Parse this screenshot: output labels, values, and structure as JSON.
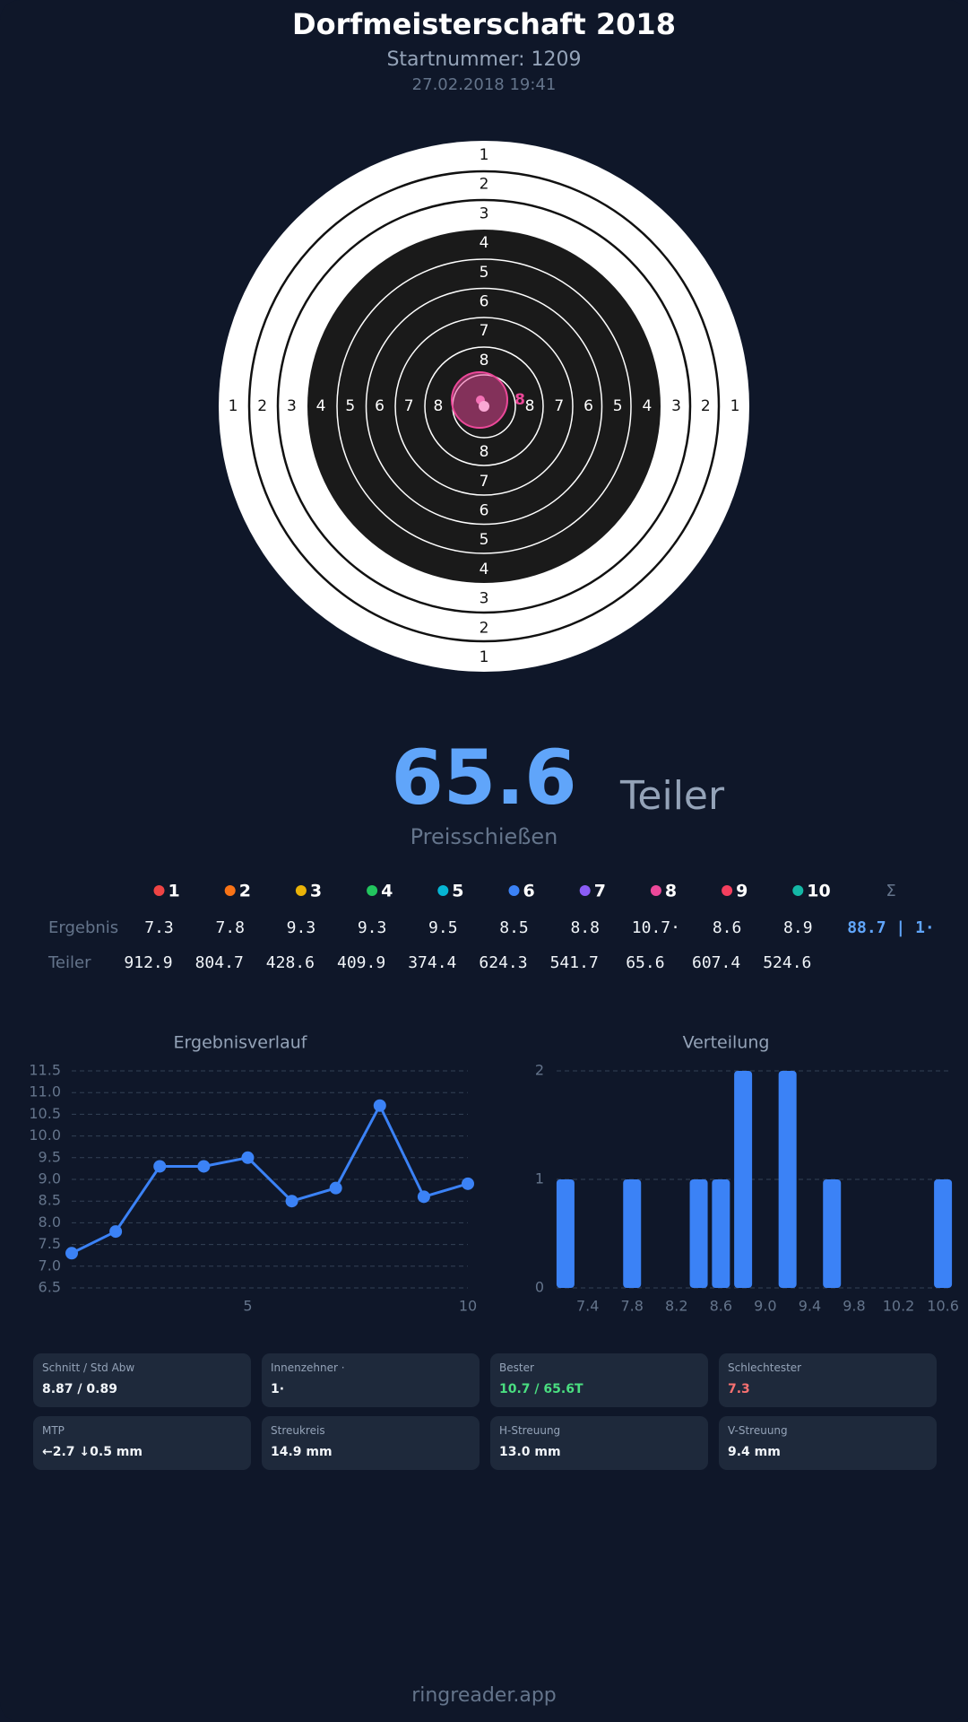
{
  "header": {
    "title": "Dorfmeisterschaft 2018",
    "subtitle": "Startnummer: 1209",
    "datetime": "27.02.2018 19:41"
  },
  "target": {
    "ring_labels": [
      "1",
      "2",
      "3",
      "4",
      "5",
      "6",
      "7",
      "8"
    ]
  },
  "result": {
    "value": "65.6",
    "unit": "Teiler",
    "mode": "Preisschießen"
  },
  "shots": {
    "labels": [
      "1",
      "2",
      "3",
      "4",
      "5",
      "6",
      "7",
      "8",
      "9",
      "10"
    ],
    "colors": [
      "#ef4444",
      "#f97316",
      "#eab308",
      "#22c55e",
      "#06b6d4",
      "#3b82f6",
      "#8b5cf6",
      "#ec4899",
      "#f43f5e",
      "#14b8a6"
    ],
    "sum_label": "Σ",
    "rows": [
      {
        "label": "Ergebnis",
        "values": [
          "7.3",
          "7.8",
          "9.3",
          "9.3",
          "9.5",
          "8.5",
          "8.8",
          "10.7·",
          "8.6",
          "8.9"
        ],
        "total": "88.7 | 1·"
      },
      {
        "label": "Teiler",
        "values": [
          "912.9",
          "804.7",
          "428.6",
          "409.9",
          "374.4",
          "624.3",
          "541.7",
          "65.6",
          "607.4",
          "524.6"
        ]
      }
    ]
  },
  "chart_data": [
    {
      "type": "line",
      "title": "Ergebnisverlauf",
      "x": [
        1,
        2,
        3,
        4,
        5,
        6,
        7,
        8,
        9,
        10
      ],
      "series": [
        {
          "values": [
            7.3,
            7.8,
            9.3,
            9.3,
            9.5,
            8.5,
            8.8,
            10.7,
            8.6,
            8.9
          ],
          "color": "#3b82f6"
        }
      ],
      "xlim": [
        1,
        10
      ],
      "xticks": [
        5,
        10
      ],
      "ylim": [
        6.5,
        11.5
      ],
      "yticks": [
        6.5,
        {
          "value": 7,
          "label": "7.0"
        },
        7.5,
        {
          "value": 8,
          "label": "8.0"
        },
        8.5,
        {
          "value": 9,
          "label": "9.0"
        },
        9.5,
        {
          "value": 10,
          "label": "10.0"
        },
        10.5,
        {
          "value": 11,
          "label": "11.0"
        },
        11.5
      ],
      "grid": true
    },
    {
      "type": "bar",
      "title": "Verteilung",
      "x": [
        7.2,
        7.8,
        8.4,
        8.6,
        8.8,
        9.2,
        9.6,
        10.6
      ],
      "values": [
        1,
        1,
        1,
        1,
        2,
        2,
        1,
        1
      ],
      "color": "#3b82f6",
      "xlim": [
        7.12,
        10.68
      ],
      "xticks": [
        7.4,
        7.8,
        8.2,
        8.6,
        {
          "value": 9,
          "label": "9.0"
        },
        9.4,
        9.8,
        10.2,
        10.6
      ],
      "ylim": [
        0,
        2
      ],
      "yticks": [
        0,
        1,
        2
      ],
      "grid": true
    }
  ],
  "stats": [
    {
      "label": "Schnitt / Std Abw",
      "value": "8.87 / 0.89"
    },
    {
      "label": "Innenzehner ·",
      "value": "1·"
    },
    {
      "label": "Bester",
      "value": "10.7 / 65.6T"
    },
    {
      "label": "Schlechtester",
      "value": "7.3"
    },
    {
      "label": "MTP",
      "value": "←2.7 ↓0.5 mm"
    },
    {
      "label": "Streukreis",
      "value": "14.9 mm"
    },
    {
      "label": "H-Streuung",
      "value": "13.0 mm"
    },
    {
      "label": "V-Streuung",
      "value": "9.4 mm"
    }
  ],
  "footer": "ringreader.app"
}
